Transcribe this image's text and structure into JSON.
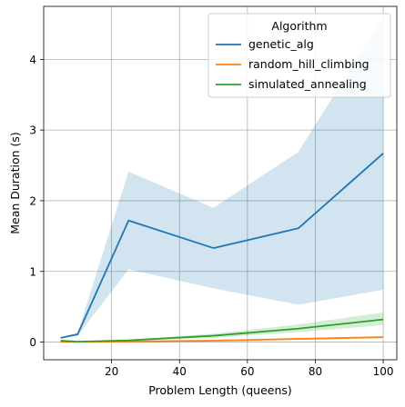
{
  "chart_data": {
    "type": "line",
    "xlabel": "Problem Length (queens)",
    "ylabel": "Mean Duration (s)",
    "xlim": [
      0,
      104
    ],
    "ylim": [
      -0.25,
      4.75
    ],
    "xticks": [
      20,
      40,
      60,
      80,
      100
    ],
    "yticks": [
      0,
      1,
      2,
      3,
      4
    ],
    "grid": true,
    "legend": {
      "title": "Algorithm",
      "placement": "top-right"
    },
    "x": [
      5,
      10,
      25,
      50,
      75,
      100
    ],
    "series": [
      {
        "name": "genetic_alg",
        "color": "#1f77b4",
        "values": [
          0.06,
          0.11,
          1.72,
          1.33,
          1.61,
          2.67
        ],
        "band_low": [
          0.05,
          0.09,
          1.03,
          0.76,
          0.53,
          0.74
        ],
        "band_high": [
          0.07,
          0.13,
          2.41,
          1.9,
          2.69,
          4.6
        ]
      },
      {
        "name": "random_hill_climbing",
        "color": "#ff7f0e",
        "values": [
          0.003,
          0.004,
          0.008,
          0.02,
          0.045,
          0.07
        ],
        "band_low": [
          0.002,
          0.003,
          0.006,
          0.015,
          0.035,
          0.055
        ],
        "band_high": [
          0.004,
          0.005,
          0.01,
          0.025,
          0.055,
          0.085
        ]
      },
      {
        "name": "simulated_annealing",
        "color": "#2ca02c",
        "values": [
          0.02,
          0.005,
          0.025,
          0.09,
          0.19,
          0.32
        ],
        "band_low": [
          0.01,
          0.003,
          0.015,
          0.06,
          0.14,
          0.24
        ],
        "band_high": [
          0.03,
          0.008,
          0.035,
          0.12,
          0.25,
          0.42
        ]
      }
    ]
  }
}
